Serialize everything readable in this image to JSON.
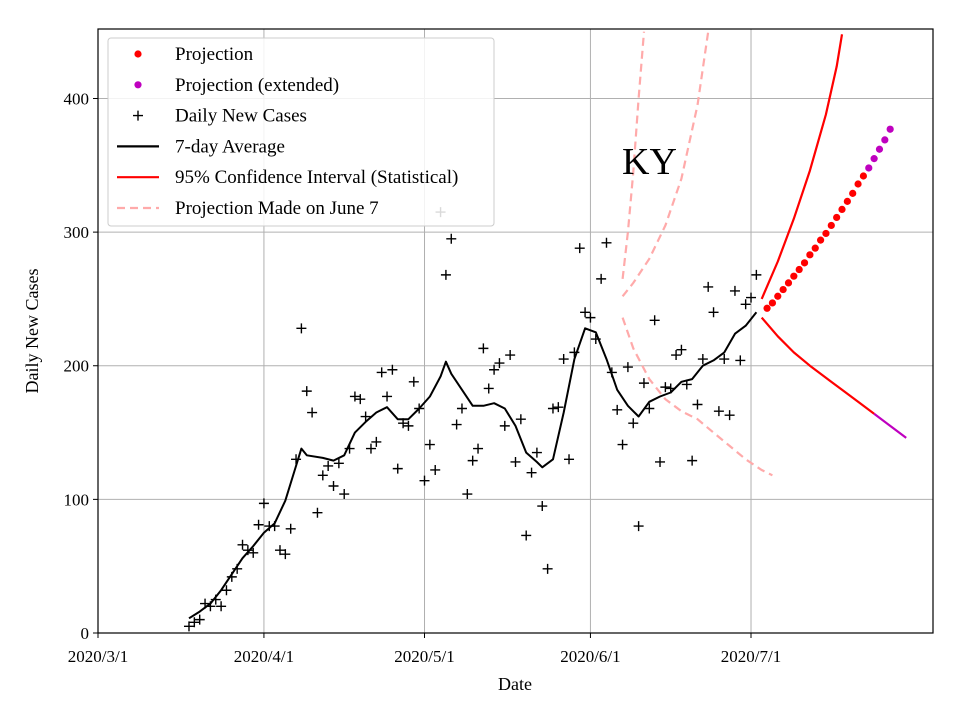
{
  "chart_data": {
    "type": "line",
    "xlabel": "Date",
    "ylabel": "Daily New Cases",
    "annotation": "KY",
    "x_type": "date",
    "xlim": [
      "2020-03-01",
      "2020-08-04"
    ],
    "ylim": [
      0,
      452
    ],
    "x_ticks": [
      {
        "date": "2020-03-01",
        "label": "2020/3/1"
      },
      {
        "date": "2020-04-01",
        "label": "2020/4/1"
      },
      {
        "date": "2020-05-01",
        "label": "2020/5/1"
      },
      {
        "date": "2020-06-01",
        "label": "2020/6/1"
      },
      {
        "date": "2020-07-01",
        "label": "2020/7/1"
      }
    ],
    "y_ticks": [
      0,
      100,
      200,
      300,
      400
    ],
    "grid": true,
    "legend_position": "top-left",
    "legend": [
      {
        "label": "Projection",
        "marker": "dot",
        "color": "#ff0000"
      },
      {
        "label": "Projection (extended)",
        "marker": "dot",
        "color": "#bf00bf"
      },
      {
        "label": "Daily New Cases",
        "marker": "plus",
        "color": "#000000"
      },
      {
        "label": "7-day Average",
        "marker": "line",
        "color": "#000000"
      },
      {
        "label": "95% Confidence Interval (Statistical)",
        "marker": "line",
        "color": "#ff0000"
      },
      {
        "label": "Projection Made on June 7",
        "marker": "dashed",
        "color": "#ffaaaa"
      }
    ],
    "series": [
      {
        "name": "Daily New Cases",
        "kind": "scatter",
        "color": "#000000",
        "points": [
          [
            "2020-03-18",
            5
          ],
          [
            "2020-03-19",
            8
          ],
          [
            "2020-03-20",
            10
          ],
          [
            "2020-03-21",
            22
          ],
          [
            "2020-03-22",
            20
          ],
          [
            "2020-03-23",
            25
          ],
          [
            "2020-03-24",
            20
          ],
          [
            "2020-03-25",
            32
          ],
          [
            "2020-03-26",
            42
          ],
          [
            "2020-03-27",
            48
          ],
          [
            "2020-03-28",
            66
          ],
          [
            "2020-03-29",
            62
          ],
          [
            "2020-03-30",
            60
          ],
          [
            "2020-03-31",
            81
          ],
          [
            "2020-04-01",
            97
          ],
          [
            "2020-04-02",
            80
          ],
          [
            "2020-04-03",
            80
          ],
          [
            "2020-04-04",
            62
          ],
          [
            "2020-04-05",
            59
          ],
          [
            "2020-04-06",
            78
          ],
          [
            "2020-04-07",
            130
          ],
          [
            "2020-04-08",
            228
          ],
          [
            "2020-04-09",
            181
          ],
          [
            "2020-04-10",
            165
          ],
          [
            "2020-04-11",
            90
          ],
          [
            "2020-04-12",
            118
          ],
          [
            "2020-04-13",
            125
          ],
          [
            "2020-04-14",
            110
          ],
          [
            "2020-04-15",
            127
          ],
          [
            "2020-04-16",
            104
          ],
          [
            "2020-04-17",
            138
          ],
          [
            "2020-04-18",
            177
          ],
          [
            "2020-04-19",
            175
          ],
          [
            "2020-04-20",
            162
          ],
          [
            "2020-04-21",
            138
          ],
          [
            "2020-04-22",
            143
          ],
          [
            "2020-04-23",
            195
          ],
          [
            "2020-04-24",
            177
          ],
          [
            "2020-04-25",
            197
          ],
          [
            "2020-04-26",
            123
          ],
          [
            "2020-04-27",
            157
          ],
          [
            "2020-04-28",
            155
          ],
          [
            "2020-04-29",
            188
          ],
          [
            "2020-04-30",
            168
          ],
          [
            "2020-05-01",
            114
          ],
          [
            "2020-05-02",
            141
          ],
          [
            "2020-05-03",
            122
          ],
          [
            "2020-05-04",
            315
          ],
          [
            "2020-05-05",
            268
          ],
          [
            "2020-05-06",
            295
          ],
          [
            "2020-05-07",
            156
          ],
          [
            "2020-05-08",
            168
          ],
          [
            "2020-05-09",
            104
          ],
          [
            "2020-05-10",
            129
          ],
          [
            "2020-05-11",
            138
          ],
          [
            "2020-05-12",
            213
          ],
          [
            "2020-05-13",
            183
          ],
          [
            "2020-05-14",
            197
          ],
          [
            "2020-05-15",
            202
          ],
          [
            "2020-05-16",
            155
          ],
          [
            "2020-05-17",
            208
          ],
          [
            "2020-05-18",
            128
          ],
          [
            "2020-05-19",
            160
          ],
          [
            "2020-05-20",
            73
          ],
          [
            "2020-05-21",
            120
          ],
          [
            "2020-05-22",
            135
          ],
          [
            "2020-05-23",
            95
          ],
          [
            "2020-05-24",
            48
          ],
          [
            "2020-05-25",
            168
          ],
          [
            "2020-05-26",
            169
          ],
          [
            "2020-05-27",
            205
          ],
          [
            "2020-05-28",
            130
          ],
          [
            "2020-05-29",
            210
          ],
          [
            "2020-05-30",
            288
          ],
          [
            "2020-05-31",
            240
          ],
          [
            "2020-06-01",
            236
          ],
          [
            "2020-06-02",
            220
          ],
          [
            "2020-06-03",
            265
          ],
          [
            "2020-06-04",
            292
          ],
          [
            "2020-06-05",
            195
          ],
          [
            "2020-06-06",
            167
          ],
          [
            "2020-06-07",
            141
          ],
          [
            "2020-06-08",
            199
          ],
          [
            "2020-06-09",
            157
          ],
          [
            "2020-06-10",
            80
          ],
          [
            "2020-06-11",
            187
          ],
          [
            "2020-06-12",
            168
          ],
          [
            "2020-06-13",
            234
          ],
          [
            "2020-06-14",
            128
          ],
          [
            "2020-06-15",
            184
          ],
          [
            "2020-06-16",
            183
          ],
          [
            "2020-06-17",
            208
          ],
          [
            "2020-06-18",
            212
          ],
          [
            "2020-06-19",
            186
          ],
          [
            "2020-06-20",
            129
          ],
          [
            "2020-06-21",
            171
          ],
          [
            "2020-06-22",
            205
          ],
          [
            "2020-06-23",
            259
          ],
          [
            "2020-06-24",
            240
          ],
          [
            "2020-06-25",
            166
          ],
          [
            "2020-06-26",
            205
          ],
          [
            "2020-06-27",
            163
          ],
          [
            "2020-06-28",
            256
          ],
          [
            "2020-06-29",
            204
          ],
          [
            "2020-06-30",
            246
          ],
          [
            "2020-07-01",
            251
          ],
          [
            "2020-07-02",
            268
          ]
        ]
      },
      {
        "name": "7-day Average",
        "kind": "line",
        "color": "#000000",
        "points": [
          [
            "2020-03-18",
            11
          ],
          [
            "2020-03-20",
            16
          ],
          [
            "2020-03-22",
            22
          ],
          [
            "2020-03-24",
            32
          ],
          [
            "2020-03-26",
            44
          ],
          [
            "2020-03-28",
            56
          ],
          [
            "2020-03-30",
            65
          ],
          [
            "2020-04-01",
            75
          ],
          [
            "2020-04-03",
            82
          ],
          [
            "2020-04-05",
            99
          ],
          [
            "2020-04-07",
            125
          ],
          [
            "2020-04-08",
            138
          ],
          [
            "2020-04-09",
            133
          ],
          [
            "2020-04-12",
            131
          ],
          [
            "2020-04-14",
            129
          ],
          [
            "2020-04-16",
            133
          ],
          [
            "2020-04-18",
            150
          ],
          [
            "2020-04-20",
            158
          ],
          [
            "2020-04-22",
            165
          ],
          [
            "2020-04-24",
            169
          ],
          [
            "2020-04-26",
            160
          ],
          [
            "2020-04-28",
            160
          ],
          [
            "2020-04-30",
            168
          ],
          [
            "2020-05-02",
            177
          ],
          [
            "2020-05-04",
            192
          ],
          [
            "2020-05-05",
            203
          ],
          [
            "2020-05-06",
            194
          ],
          [
            "2020-05-08",
            182
          ],
          [
            "2020-05-10",
            170
          ],
          [
            "2020-05-12",
            170
          ],
          [
            "2020-05-14",
            172
          ],
          [
            "2020-05-16",
            168
          ],
          [
            "2020-05-18",
            155
          ],
          [
            "2020-05-20",
            135
          ],
          [
            "2020-05-22",
            128
          ],
          [
            "2020-05-23",
            124
          ],
          [
            "2020-05-25",
            130
          ],
          [
            "2020-05-27",
            165
          ],
          [
            "2020-05-29",
            205
          ],
          [
            "2020-05-31",
            228
          ],
          [
            "2020-06-02",
            225
          ],
          [
            "2020-06-04",
            205
          ],
          [
            "2020-06-06",
            182
          ],
          [
            "2020-06-08",
            170
          ],
          [
            "2020-06-10",
            162
          ],
          [
            "2020-06-12",
            173
          ],
          [
            "2020-06-14",
            177
          ],
          [
            "2020-06-16",
            180
          ],
          [
            "2020-06-18",
            188
          ],
          [
            "2020-06-20",
            190
          ],
          [
            "2020-06-22",
            200
          ],
          [
            "2020-06-24",
            204
          ],
          [
            "2020-06-26",
            210
          ],
          [
            "2020-06-28",
            224
          ],
          [
            "2020-06-30",
            230
          ],
          [
            "2020-07-02",
            240
          ]
        ]
      },
      {
        "name": "Projection",
        "kind": "dots",
        "color": "#ff0000",
        "start": "2020-07-04",
        "values": [
          243,
          247,
          252,
          257,
          262,
          267,
          272,
          277,
          283,
          288,
          294,
          299,
          305,
          311,
          317,
          323,
          329,
          336,
          342
        ]
      },
      {
        "name": "Projection (extended)",
        "kind": "dots",
        "color": "#bf00bf",
        "start": "2020-07-23",
        "values": [
          348,
          355,
          362,
          369,
          377
        ]
      },
      {
        "name": "95% Confidence Interval (Statistical)",
        "kind": "line",
        "color": "#ff0000",
        "points": [
          [
            "2020-07-03",
            250
          ],
          [
            "2020-07-06",
            278
          ],
          [
            "2020-07-09",
            310
          ],
          [
            "2020-07-12",
            346
          ],
          [
            "2020-07-15",
            388
          ],
          [
            "2020-07-17",
            424
          ],
          [
            "2020-07-18",
            448
          ]
        ]
      },
      {
        "name": "95% Confidence Interval (Statistical)",
        "kind": "line",
        "color": "#ff0000",
        "points": [
          [
            "2020-07-03",
            236
          ],
          [
            "2020-07-06",
            222
          ],
          [
            "2020-07-09",
            210
          ],
          [
            "2020-07-12",
            200
          ],
          [
            "2020-07-15",
            191
          ],
          [
            "2020-07-18",
            182
          ],
          [
            "2020-07-21",
            173
          ],
          [
            "2020-07-24",
            164
          ]
        ]
      },
      {
        "name": "95% Confidence Interval (Statistical)",
        "kind": "line",
        "color": "#bf00bf",
        "points": [
          [
            "2020-07-24",
            164
          ],
          [
            "2020-07-27",
            155
          ],
          [
            "2020-07-30",
            146
          ]
        ]
      },
      {
        "name": "Projection Made on June 7",
        "kind": "dashed",
        "color": "#ffaaaa",
        "points": [
          [
            "2020-06-07",
            265
          ],
          [
            "2020-06-08",
            300
          ],
          [
            "2020-06-09",
            345
          ],
          [
            "2020-06-10",
            400
          ],
          [
            "2020-06-11",
            450
          ]
        ]
      },
      {
        "name": "Projection Made on June 7",
        "kind": "dashed",
        "color": "#ffaaaa",
        "points": [
          [
            "2020-06-07",
            252
          ],
          [
            "2020-06-09",
            262
          ],
          [
            "2020-06-12",
            280
          ],
          [
            "2020-06-15",
            305
          ],
          [
            "2020-06-18",
            340
          ],
          [
            "2020-06-21",
            395
          ],
          [
            "2020-06-23",
            450
          ]
        ]
      },
      {
        "name": "Projection Made on June 7",
        "kind": "dashed",
        "color": "#ffaaaa",
        "points": [
          [
            "2020-06-07",
            236
          ],
          [
            "2020-06-09",
            213
          ],
          [
            "2020-06-12",
            190
          ],
          [
            "2020-06-15",
            175
          ],
          [
            "2020-06-18",
            166
          ],
          [
            "2020-06-21",
            160
          ],
          [
            "2020-06-24",
            150
          ],
          [
            "2020-06-27",
            140
          ],
          [
            "2020-06-30",
            130
          ],
          [
            "2020-07-03",
            122
          ],
          [
            "2020-07-05",
            118
          ]
        ]
      }
    ]
  }
}
